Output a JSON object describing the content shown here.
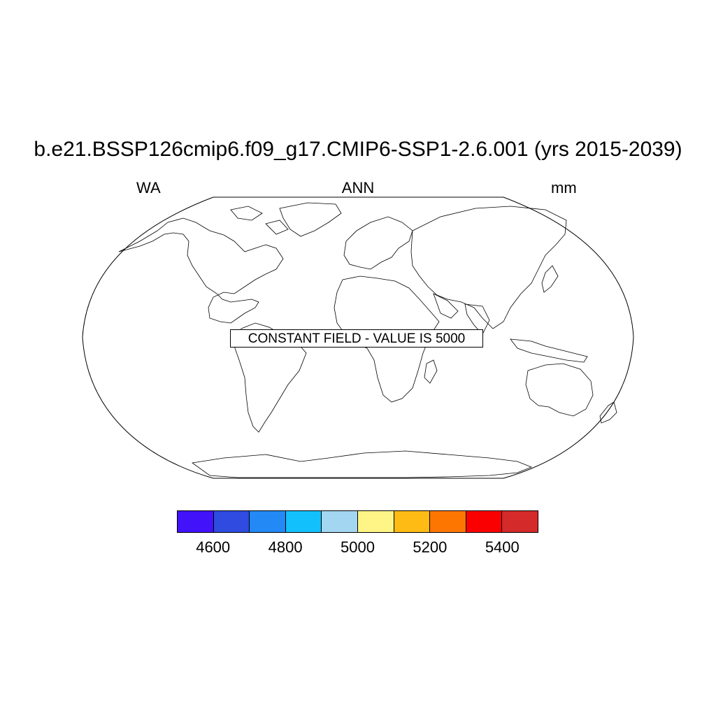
{
  "title": "b.e21.BSSP126cmip6.f09_g17.CMIP6-SSP1-2.6.001 (yrs 2015-2039)",
  "subtitle_left": "WA",
  "subtitle_center": "ANN",
  "subtitle_right": "mm",
  "map": {
    "projection": "Robinson",
    "annotation": "CONSTANT FIELD - VALUE IS 5000"
  },
  "colorbar": {
    "levels": [
      4600,
      4800,
      5000,
      5200,
      5400
    ],
    "labels": [
      "4600",
      "4800",
      "5000",
      "5200",
      "5400"
    ],
    "colors": [
      "#4212fa",
      "#2f4be0",
      "#2289f5",
      "#12c1fb",
      "#a3d6f1",
      "#fef586",
      "#fdbb13",
      "#fd7602",
      "#fb0000",
      "#d42a2a"
    ]
  }
}
